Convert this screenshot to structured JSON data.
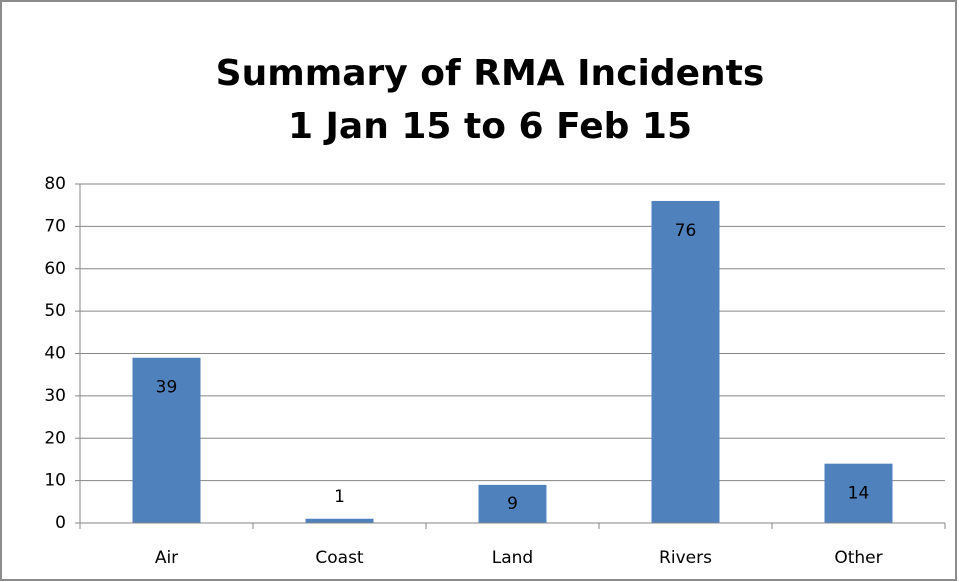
{
  "chart_data": {
    "type": "bar",
    "title": "Summary of RMA Incidents",
    "subtitle": "1 Jan 15 to 6 Feb 15",
    "categories": [
      "Air",
      "Coast",
      "Land",
      "Rivers",
      "Other"
    ],
    "values": [
      39,
      1,
      9,
      76,
      14
    ],
    "color": "#4f81bd",
    "ylim": [
      0,
      80
    ],
    "yticks": [
      0,
      10,
      20,
      30,
      40,
      50,
      60,
      70,
      80
    ],
    "grid": true
  }
}
